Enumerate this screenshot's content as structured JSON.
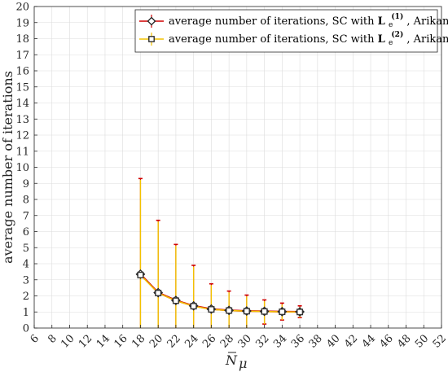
{
  "chart_data": {
    "type": "line",
    "xlabel_base": "N",
    "xlabel_sub": "μ",
    "ylabel": "average number of iterations",
    "xlim": [
      6,
      52
    ],
    "ylim": [
      0,
      20
    ],
    "xticks": [
      6,
      8,
      10,
      12,
      14,
      16,
      18,
      20,
      22,
      24,
      26,
      28,
      30,
      32,
      34,
      36,
      38,
      40,
      42,
      44,
      46,
      48,
      50,
      52
    ],
    "yticks": [
      0,
      1,
      2,
      3,
      4,
      5,
      6,
      7,
      8,
      9,
      10,
      11,
      12,
      13,
      14,
      15,
      16,
      17,
      18,
      19,
      20
    ],
    "grid": true,
    "legend_position": "top-right",
    "x": [
      18,
      20,
      22,
      24,
      26,
      28,
      30,
      32,
      34,
      36
    ],
    "series": [
      {
        "name_prefix": "average number of iterations, SC with ",
        "name_symbol": "L",
        "name_sub": "e",
        "name_sup": "(1)",
        "name_suffix": ", Arikan",
        "color": "#d00000",
        "marker": "diamond",
        "values": [
          3.35,
          2.2,
          1.72,
          1.38,
          1.18,
          1.1,
          1.06,
          1.04,
          1.02,
          1.01
        ],
        "err_low": [
          0,
          0,
          0,
          0,
          0,
          0,
          0,
          0.25,
          0.5,
          0.65
        ],
        "err_high": [
          9.3,
          6.7,
          5.2,
          3.9,
          2.75,
          2.3,
          2.05,
          1.75,
          1.55,
          1.38
        ]
      },
      {
        "name_prefix": "average number of iterations, SC with ",
        "name_symbol": "L",
        "name_sub": "e",
        "name_sup": "(2)",
        "name_suffix": ", Arikan",
        "color": "#f2c200",
        "marker": "square",
        "values": [
          3.3,
          2.18,
          1.7,
          1.36,
          1.16,
          1.09,
          1.05,
          1.03,
          1.01,
          1.0
        ],
        "err_low": [
          0,
          0,
          0,
          0,
          0,
          0,
          0,
          0.25,
          0.5,
          0.65
        ],
        "err_high": [
          9.3,
          6.7,
          5.2,
          3.9,
          2.75,
          2.3,
          2.05,
          1.75,
          1.55,
          1.38
        ]
      }
    ]
  }
}
